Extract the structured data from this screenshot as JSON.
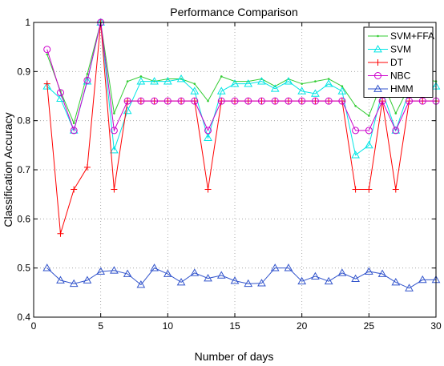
{
  "chart_data": {
    "type": "line",
    "title": "Performance Comparison",
    "xlabel": "Number of days",
    "ylabel": "Classification Accuracy",
    "xlim": [
      0,
      30
    ],
    "ylim": [
      0.4,
      1.0
    ],
    "xticks": [
      0,
      5,
      10,
      15,
      20,
      25,
      30
    ],
    "yticks": [
      0.4,
      0.5,
      0.6,
      0.7,
      0.8,
      0.9,
      1
    ],
    "ytick_labels": [
      "0.4",
      "0.5",
      "0.6",
      "0.7",
      "0.8",
      "0.9",
      "1"
    ],
    "grid": true,
    "legend_position": "top-right",
    "x": [
      1,
      2,
      3,
      4,
      5,
      6,
      7,
      8,
      9,
      10,
      11,
      12,
      13,
      14,
      15,
      16,
      17,
      18,
      19,
      20,
      21,
      22,
      23,
      24,
      25,
      26,
      27,
      28,
      29,
      30
    ],
    "series": [
      {
        "name": "SVM+FFA",
        "color": "#33cc33",
        "marker": "dot",
        "values": [
          0.935,
          0.86,
          0.795,
          0.895,
          1.0,
          0.815,
          0.88,
          0.89,
          0.88,
          0.885,
          0.885,
          0.875,
          0.84,
          0.89,
          0.88,
          0.88,
          0.885,
          0.87,
          0.885,
          0.875,
          0.88,
          0.885,
          0.87,
          0.83,
          0.81,
          0.88,
          0.815,
          0.87,
          0.885,
          0.88
        ]
      },
      {
        "name": "SVM",
        "color": "#00e5e5",
        "marker": "triangle",
        "values": [
          0.87,
          0.845,
          0.78,
          0.88,
          1.0,
          0.74,
          0.82,
          0.88,
          0.88,
          0.88,
          0.885,
          0.86,
          0.765,
          0.86,
          0.875,
          0.875,
          0.88,
          0.865,
          0.88,
          0.86,
          0.855,
          0.875,
          0.86,
          0.73,
          0.75,
          0.86,
          0.78,
          0.86,
          0.87,
          0.87
        ]
      },
      {
        "name": "DT",
        "color": "#ff0000",
        "marker": "plus",
        "values": [
          0.875,
          0.57,
          0.66,
          0.705,
          1.0,
          0.66,
          0.84,
          0.84,
          0.84,
          0.84,
          0.84,
          0.84,
          0.66,
          0.84,
          0.84,
          0.84,
          0.84,
          0.84,
          0.84,
          0.84,
          0.84,
          0.84,
          0.84,
          0.66,
          0.66,
          0.84,
          0.66,
          0.84,
          0.84,
          0.84
        ]
      },
      {
        "name": "NBC",
        "color": "#cc00cc",
        "marker": "circle",
        "values": [
          0.945,
          0.857,
          0.78,
          0.882,
          1.0,
          0.78,
          0.84,
          0.84,
          0.84,
          0.84,
          0.84,
          0.84,
          0.78,
          0.84,
          0.84,
          0.84,
          0.84,
          0.84,
          0.84,
          0.84,
          0.84,
          0.84,
          0.84,
          0.78,
          0.78,
          0.84,
          0.78,
          0.84,
          0.84,
          0.84
        ]
      },
      {
        "name": "HMM",
        "color": "#3355cc",
        "marker": "triangle",
        "values": [
          0.5,
          0.475,
          0.468,
          0.475,
          0.493,
          0.495,
          0.488,
          0.466,
          0.5,
          0.488,
          0.471,
          0.49,
          0.479,
          0.485,
          0.474,
          0.468,
          0.469,
          0.5,
          0.5,
          0.473,
          0.483,
          0.473,
          0.49,
          0.478,
          0.493,
          0.488,
          0.471,
          0.459,
          0.476,
          0.476
        ]
      }
    ]
  }
}
